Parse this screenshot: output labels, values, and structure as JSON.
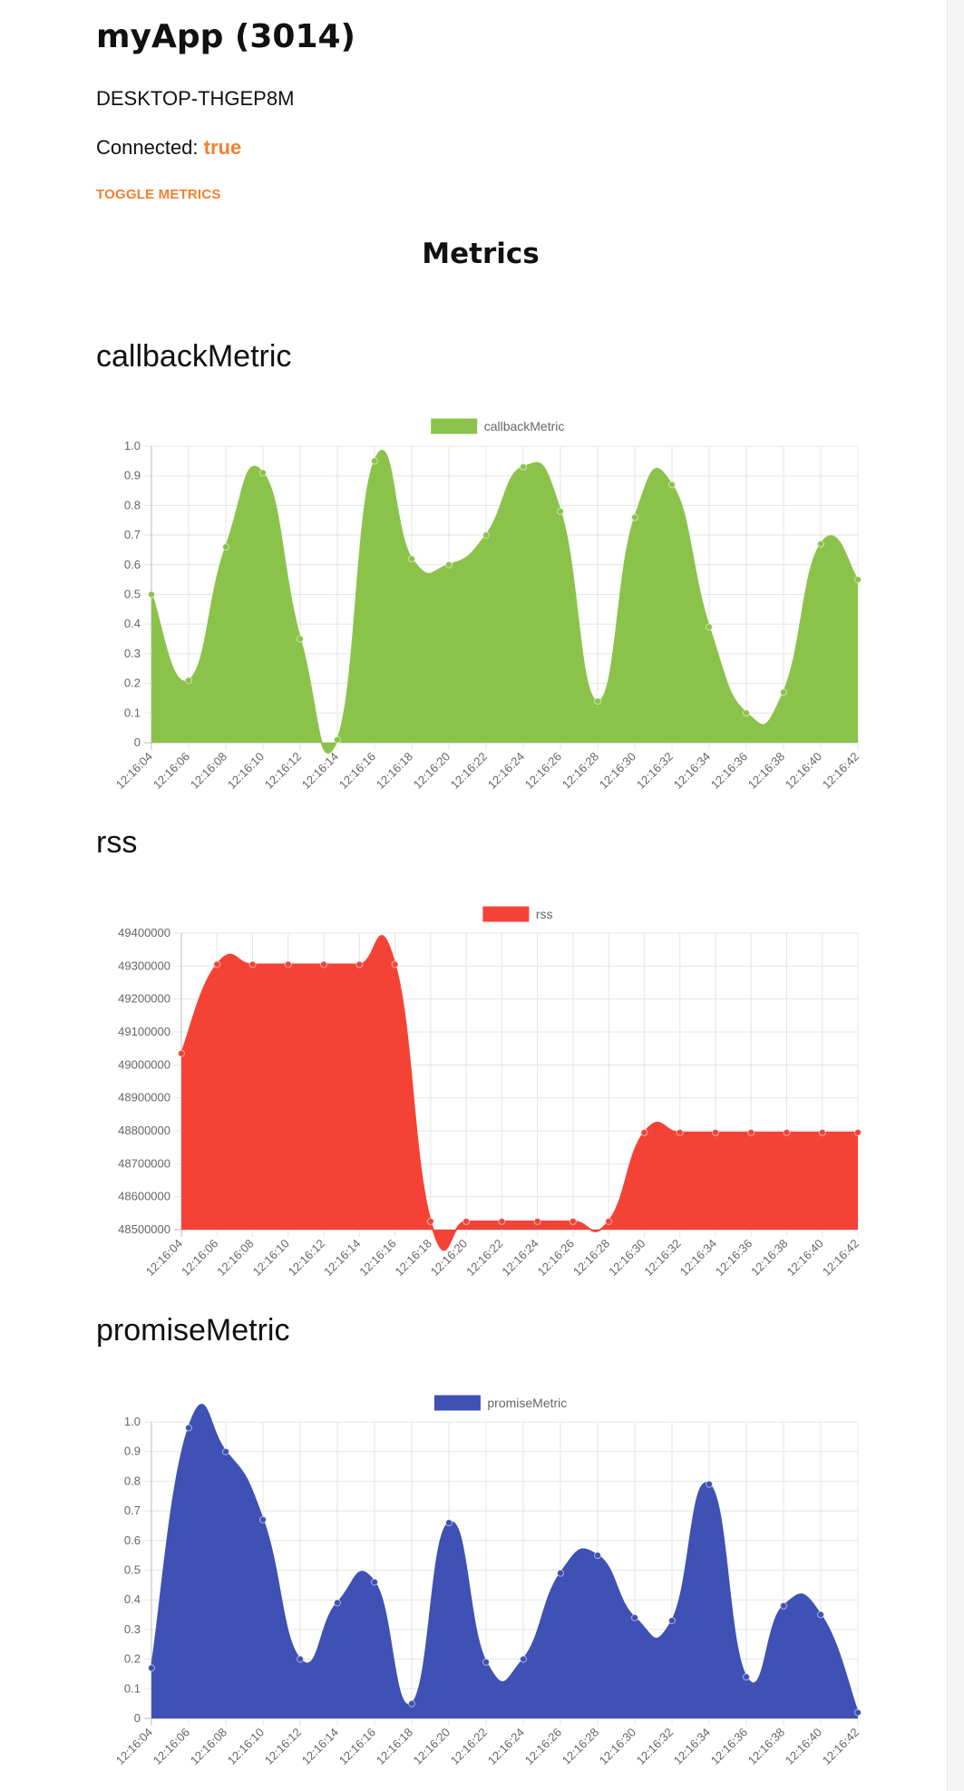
{
  "header": {
    "app_title": "myApp (3014)",
    "host": "DESKTOP-THGEP8M",
    "connected_label": "Connected:",
    "connected_value": "true",
    "toggle_label": "TOGGLE METRICS"
  },
  "metrics_heading": "Metrics",
  "colors": {
    "accent": "#f2802f",
    "callbackMetric": "#8bc34a",
    "rss": "#f44336",
    "promiseMetric": "#3f51b5"
  },
  "chart_data": [
    {
      "type": "area",
      "title": "callbackMetric",
      "legend": "callbackMetric",
      "legend_position": "top",
      "color": "#8bc34a",
      "grid": true,
      "ylim": [
        0,
        1
      ],
      "y_ticks": [
        "0",
        "0.1",
        "0.2",
        "0.3",
        "0.4",
        "0.5",
        "0.6",
        "0.7",
        "0.8",
        "0.9",
        "1.0"
      ],
      "x_tick_labels": [
        "12:16:04",
        "12:16:06",
        "12:16:08",
        "12:16:10",
        "12:16:12",
        "12:16:14",
        "12:16:16",
        "12:16:18",
        "12:16:20",
        "12:16:22",
        "12:16:24",
        "12:16:26",
        "12:16:28",
        "12:16:30",
        "12:16:32",
        "12:16:34",
        "12:16:36",
        "12:16:38",
        "12:16:40",
        "12:16:42"
      ],
      "x": [
        "12:16:04",
        "12:16:06",
        "12:16:08",
        "12:16:10",
        "12:16:12",
        "12:16:14",
        "12:16:16",
        "12:16:18",
        "12:16:20",
        "12:16:22",
        "12:16:24",
        "12:16:26",
        "12:16:28",
        "12:16:30",
        "12:16:32",
        "12:16:34",
        "12:16:36",
        "12:16:38",
        "12:16:40",
        "12:16:42"
      ],
      "values": [
        0.5,
        0.21,
        0.66,
        0.91,
        0.35,
        0.01,
        0.95,
        0.62,
        0.6,
        0.7,
        0.93,
        0.78,
        0.14,
        0.76,
        0.87,
        0.39,
        0.1,
        0.17,
        0.67,
        0.55
      ]
    },
    {
      "type": "area",
      "title": "rss",
      "legend": "rss",
      "legend_position": "top",
      "color": "#f44336",
      "grid": true,
      "ylim": [
        48500000,
        49400000
      ],
      "y_ticks": [
        "48500000",
        "48600000",
        "48700000",
        "48800000",
        "48900000",
        "49000000",
        "49100000",
        "49200000",
        "49300000",
        "49400000"
      ],
      "x_tick_labels": [
        "12:16:04",
        "12:16:06",
        "12:16:08",
        "12:16:10",
        "12:16:12",
        "12:16:14",
        "12:16:16",
        "12:16:18",
        "12:16:20",
        "12:16:22",
        "12:16:24",
        "12:16:26",
        "12:16:28",
        "12:16:30",
        "12:16:32",
        "12:16:34",
        "12:16:36",
        "12:16:38",
        "12:16:40",
        "12:16:42"
      ],
      "x": [
        "12:16:04",
        "12:16:06",
        "12:16:08",
        "12:16:10",
        "12:16:12",
        "12:16:14",
        "12:16:16",
        "12:16:18",
        "12:16:20",
        "12:16:22",
        "12:16:24",
        "12:16:26",
        "12:16:28",
        "12:16:30",
        "12:16:32",
        "12:16:34",
        "12:16:36",
        "12:16:38",
        "12:16:40",
        "12:16:42"
      ],
      "values": [
        49035000,
        49305000,
        49305000,
        49305000,
        49305000,
        49305000,
        49305000,
        48525000,
        48525000,
        48525000,
        48525000,
        48525000,
        48525000,
        48795000,
        48795000,
        48795000,
        48795000,
        48795000,
        48795000,
        48795000
      ]
    },
    {
      "type": "area",
      "title": "promiseMetric",
      "legend": "promiseMetric",
      "legend_position": "top",
      "color": "#3f51b5",
      "grid": true,
      "ylim": [
        0,
        1
      ],
      "y_ticks": [
        "0",
        "0.1",
        "0.2",
        "0.3",
        "0.4",
        "0.5",
        "0.6",
        "0.7",
        "0.8",
        "0.9",
        "1.0"
      ],
      "x_tick_labels": [
        "12:16:04",
        "12:16:06",
        "12:16:08",
        "12:16:10",
        "12:16:12",
        "12:16:14",
        "12:16:16",
        "12:16:18",
        "12:16:20",
        "12:16:22",
        "12:16:24",
        "12:16:26",
        "12:16:28",
        "12:16:30",
        "12:16:32",
        "12:16:34",
        "12:16:36",
        "12:16:38",
        "12:16:40",
        "12:16:42"
      ],
      "x": [
        "12:16:04",
        "12:16:06",
        "12:16:08",
        "12:16:10",
        "12:16:12",
        "12:16:14",
        "12:16:16",
        "12:16:18",
        "12:16:20",
        "12:16:22",
        "12:16:24",
        "12:16:26",
        "12:16:28",
        "12:16:30",
        "12:16:32",
        "12:16:34",
        "12:16:36",
        "12:16:38",
        "12:16:40",
        "12:16:42"
      ],
      "values": [
        0.17,
        0.98,
        0.9,
        0.67,
        0.2,
        0.39,
        0.46,
        0.05,
        0.66,
        0.19,
        0.2,
        0.49,
        0.55,
        0.34,
        0.33,
        0.79,
        0.14,
        0.38,
        0.35,
        0.02
      ]
    }
  ]
}
